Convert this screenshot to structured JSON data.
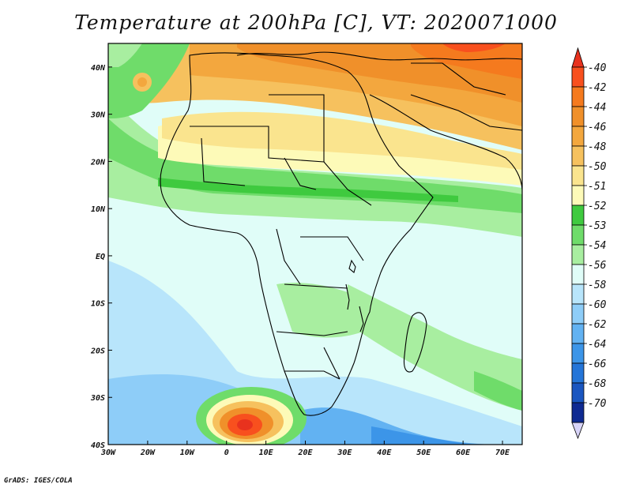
{
  "title": "Temperature at 200hPa [C], VT: 2020071000",
  "credit": "GrADS: IGES/COLA",
  "map": {
    "lon_range": [
      -30,
      75
    ],
    "lat_range": [
      -40,
      45
    ],
    "lon_ticks": [
      {
        "value": -30,
        "label": "30W"
      },
      {
        "value": -20,
        "label": "20W"
      },
      {
        "value": -10,
        "label": "10W"
      },
      {
        "value": 0,
        "label": "0"
      },
      {
        "value": 10,
        "label": "10E"
      },
      {
        "value": 20,
        "label": "20E"
      },
      {
        "value": 30,
        "label": "30E"
      },
      {
        "value": 40,
        "label": "40E"
      },
      {
        "value": 50,
        "label": "50E"
      },
      {
        "value": 60,
        "label": "60E"
      },
      {
        "value": 70,
        "label": "70E"
      }
    ],
    "lat_ticks": [
      {
        "value": 40,
        "label": "40N"
      },
      {
        "value": 30,
        "label": "30N"
      },
      {
        "value": 20,
        "label": "20N"
      },
      {
        "value": 10,
        "label": "10N"
      },
      {
        "value": 0,
        "label": "EQ"
      },
      {
        "value": -10,
        "label": "10S"
      },
      {
        "value": -20,
        "label": "20S"
      },
      {
        "value": -30,
        "label": "30S"
      },
      {
        "value": -40,
        "label": "40S"
      }
    ]
  },
  "colorbar": {
    "levels": [
      {
        "label": "-40",
        "color": "#f8501e"
      },
      {
        "label": "-42",
        "color": "#f57a1e"
      },
      {
        "label": "-44",
        "color": "#f0902a"
      },
      {
        "label": "-46",
        "color": "#f3a73e"
      },
      {
        "label": "-48",
        "color": "#f6c15e"
      },
      {
        "label": "-50",
        "color": "#fae48e"
      },
      {
        "label": "-51",
        "color": "#fdfab8"
      },
      {
        "label": "-52",
        "color": "#3fca3f"
      },
      {
        "label": "-53",
        "color": "#6fdc6a"
      },
      {
        "label": "-54",
        "color": "#a8eea0"
      },
      {
        "label": "-56",
        "color": "#e0fdf8"
      },
      {
        "label": "-58",
        "color": "#b8e5fb"
      },
      {
        "label": "-60",
        "color": "#8ecdf8"
      },
      {
        "label": "-62",
        "color": "#62b2f2"
      },
      {
        "label": "-64",
        "color": "#3c95e8"
      },
      {
        "label": "-66",
        "color": "#2475d8"
      },
      {
        "label": "-68",
        "color": "#1a56c0"
      },
      {
        "label": "-70",
        "color": "#0f2a92"
      }
    ],
    "top_arrow_color": "#e8321e",
    "bottom_arrow_color": "#d8d4f8"
  }
}
